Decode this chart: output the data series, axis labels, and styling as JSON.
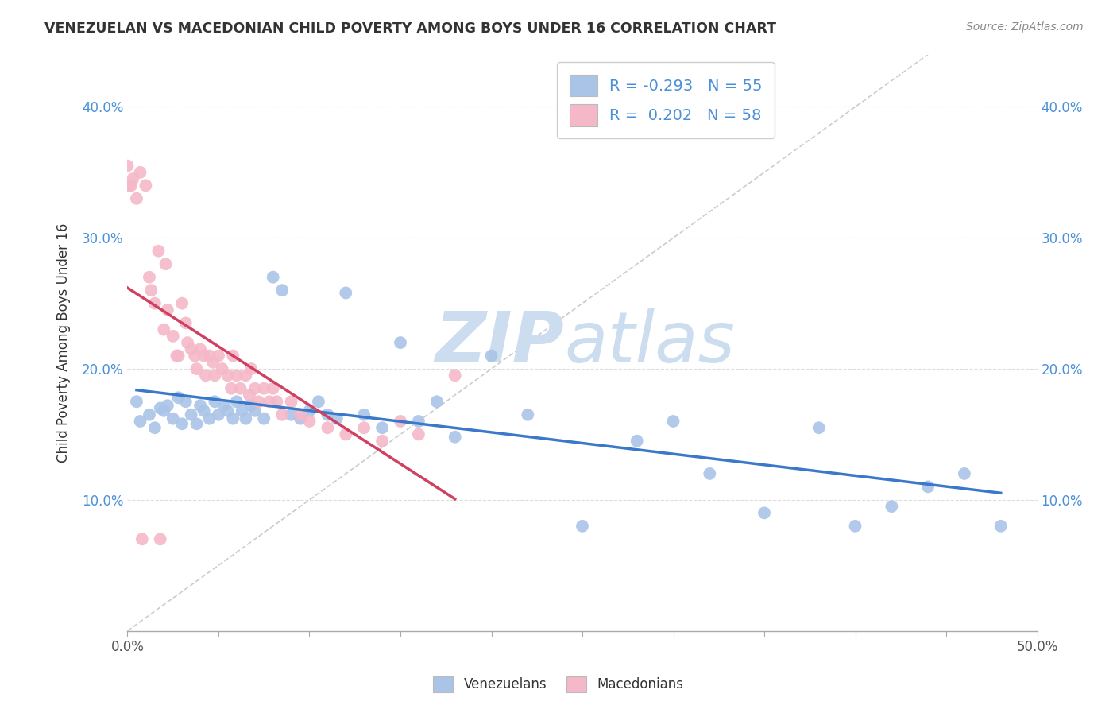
{
  "title": "VENEZUELAN VS MACEDONIAN CHILD POVERTY AMONG BOYS UNDER 16 CORRELATION CHART",
  "source": "Source: ZipAtlas.com",
  "ylabel": "Child Poverty Among Boys Under 16",
  "xlim": [
    0.0,
    0.5
  ],
  "ylim": [
    0.0,
    0.44
  ],
  "xtick_edge_labels": [
    "0.0%",
    "50.0%"
  ],
  "xtick_edge_values": [
    0.0,
    0.5
  ],
  "ytick_labels": [
    "10.0%",
    "20.0%",
    "30.0%",
    "40.0%"
  ],
  "ytick_values": [
    0.1,
    0.2,
    0.3,
    0.4
  ],
  "legend_labels": [
    "Venezuelans",
    "Macedonians"
  ],
  "legend_r": [
    -0.293,
    0.202
  ],
  "legend_n": [
    55,
    58
  ],
  "venezuelan_color": "#aac4e8",
  "macedonian_color": "#f4b8c8",
  "venezuelan_line_color": "#3a78c9",
  "macedonian_line_color": "#d04060",
  "diagonal_color": "#cccccc",
  "watermark_zip": "ZIP",
  "watermark_atlas": "atlas",
  "watermark_color": "#ccddf0",
  "venezuelan_x": [
    0.005,
    0.007,
    0.012,
    0.015,
    0.018,
    0.02,
    0.022,
    0.025,
    0.028,
    0.03,
    0.032,
    0.035,
    0.038,
    0.04,
    0.042,
    0.045,
    0.048,
    0.05,
    0.053,
    0.055,
    0.058,
    0.06,
    0.063,
    0.065,
    0.068,
    0.07,
    0.075,
    0.08,
    0.085,
    0.09,
    0.095,
    0.1,
    0.105,
    0.11,
    0.115,
    0.12,
    0.13,
    0.14,
    0.15,
    0.16,
    0.17,
    0.18,
    0.2,
    0.22,
    0.25,
    0.28,
    0.3,
    0.32,
    0.35,
    0.38,
    0.4,
    0.42,
    0.44,
    0.46,
    0.48
  ],
  "venezuelan_y": [
    0.175,
    0.16,
    0.165,
    0.155,
    0.17,
    0.168,
    0.172,
    0.162,
    0.178,
    0.158,
    0.175,
    0.165,
    0.158,
    0.172,
    0.168,
    0.162,
    0.175,
    0.165,
    0.172,
    0.168,
    0.162,
    0.175,
    0.168,
    0.162,
    0.172,
    0.168,
    0.162,
    0.27,
    0.26,
    0.165,
    0.162,
    0.168,
    0.175,
    0.165,
    0.162,
    0.258,
    0.165,
    0.155,
    0.22,
    0.16,
    0.175,
    0.148,
    0.21,
    0.165,
    0.08,
    0.145,
    0.16,
    0.12,
    0.09,
    0.155,
    0.08,
    0.095,
    0.11,
    0.12,
    0.08
  ],
  "macedonian_x": [
    0.0,
    0.001,
    0.002,
    0.003,
    0.005,
    0.007,
    0.008,
    0.01,
    0.012,
    0.013,
    0.015,
    0.017,
    0.018,
    0.02,
    0.021,
    0.022,
    0.025,
    0.027,
    0.028,
    0.03,
    0.032,
    0.033,
    0.035,
    0.037,
    0.038,
    0.04,
    0.042,
    0.043,
    0.045,
    0.047,
    0.048,
    0.05,
    0.052,
    0.055,
    0.057,
    0.058,
    0.06,
    0.062,
    0.065,
    0.067,
    0.068,
    0.07,
    0.072,
    0.075,
    0.078,
    0.08,
    0.082,
    0.085,
    0.09,
    0.095,
    0.1,
    0.11,
    0.12,
    0.13,
    0.14,
    0.15,
    0.16,
    0.18
  ],
  "macedonian_y": [
    0.355,
    0.34,
    0.34,
    0.345,
    0.33,
    0.35,
    0.07,
    0.34,
    0.27,
    0.26,
    0.25,
    0.29,
    0.07,
    0.23,
    0.28,
    0.245,
    0.225,
    0.21,
    0.21,
    0.25,
    0.235,
    0.22,
    0.215,
    0.21,
    0.2,
    0.215,
    0.21,
    0.195,
    0.21,
    0.205,
    0.195,
    0.21,
    0.2,
    0.195,
    0.185,
    0.21,
    0.195,
    0.185,
    0.195,
    0.18,
    0.2,
    0.185,
    0.175,
    0.185,
    0.175,
    0.185,
    0.175,
    0.165,
    0.175,
    0.165,
    0.16,
    0.155,
    0.15,
    0.155,
    0.145,
    0.16,
    0.15,
    0.195
  ]
}
